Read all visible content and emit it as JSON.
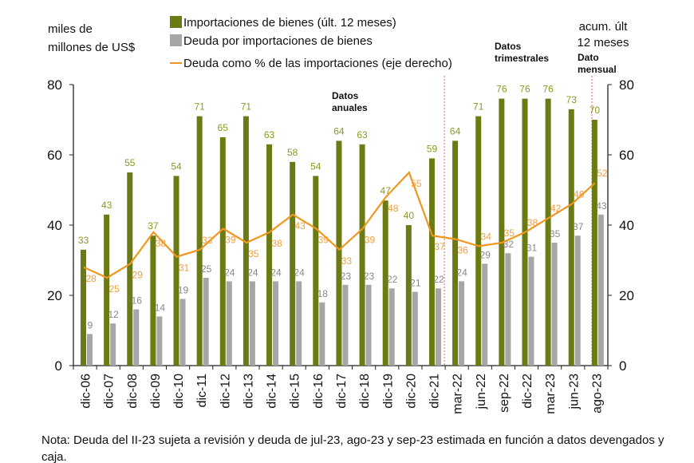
{
  "chart_data": {
    "type": "bar",
    "ylabel_left": "miles de millones de US$",
    "ylabel_right": "acum. últ 12 meses",
    "ylim_left": [
      0,
      80
    ],
    "ylim_right": [
      0,
      80
    ],
    "yticks": [
      0,
      20,
      40,
      60,
      80
    ],
    "grid": false,
    "legend_placement": "top",
    "categories": [
      "dic-06",
      "dic-07",
      "dic-08",
      "dic-09",
      "dic-10",
      "dic-11",
      "dic-12",
      "dic-13",
      "dic-14",
      "dic-15",
      "dic-16",
      "dic-17",
      "dic-18",
      "dic-19",
      "dic-20",
      "dic-21",
      "mar-22",
      "jun-22",
      "sep-22",
      "dic-22",
      "mar-23",
      "jun-23",
      "ago-23"
    ],
    "series": [
      {
        "name": "Importaciones de bienes (últ. 12 meses)",
        "kind": "bar",
        "axis": "left",
        "color": "#6b7a12",
        "values": [
          33,
          43,
          55,
          37,
          54,
          71,
          65,
          71,
          63,
          58,
          54,
          64,
          63,
          47,
          40,
          59,
          64,
          71,
          76,
          76,
          76,
          73,
          70
        ]
      },
      {
        "name": "Deuda por importaciones de bienes",
        "kind": "bar",
        "axis": "left",
        "color": "#a6a6a6",
        "values": [
          9,
          12,
          16,
          14,
          19,
          25,
          24,
          24,
          24,
          24,
          18,
          23,
          23,
          22,
          21,
          22,
          24,
          29,
          32,
          31,
          35,
          37,
          43
        ]
      },
      {
        "name": "Deuda como % de las importaciones (eje derecho)",
        "kind": "line",
        "axis": "right",
        "color": "#f0961e",
        "values": [
          28,
          25,
          29,
          38,
          31,
          33,
          39,
          35,
          38,
          43,
          39,
          33,
          39,
          48,
          55,
          37,
          36,
          34,
          35,
          38,
          42,
          46,
          52
        ]
      }
    ],
    "annotations": [
      "Datos anuales",
      "Datos trimestrales",
      "Dato mensual"
    ]
  },
  "note": "Nota: Deuda del II-23 sujeta a revisión y deuda de jul-23, ago-23 y sep-23 estimada en función a datos devengados y caja."
}
